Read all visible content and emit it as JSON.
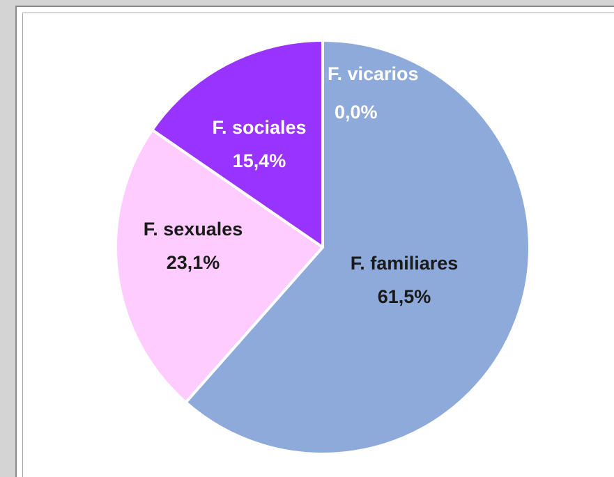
{
  "chart_data": {
    "type": "pie",
    "start_angle_deg": 0,
    "direction": "clockwise",
    "slices": [
      {
        "label": "F. familiares",
        "value_label": "61,5%",
        "value": 61.5,
        "color": "#8eaadb",
        "text_color": "#1a1a1a"
      },
      {
        "label": "F. sexuales",
        "value_label": "23,1%",
        "value": 23.1,
        "color": "#ffccff",
        "text_color": "#1a1a1a"
      },
      {
        "label": "F. sociales",
        "value_label": "15,4%",
        "value": 15.4,
        "color": "#9933ff",
        "text_color": "#ffffff"
      },
      {
        "label": "F. vicarios",
        "value_label": "0,0%",
        "value": 0.0,
        "color": "#8eaadb",
        "text_color": "#ffffff"
      }
    ]
  }
}
